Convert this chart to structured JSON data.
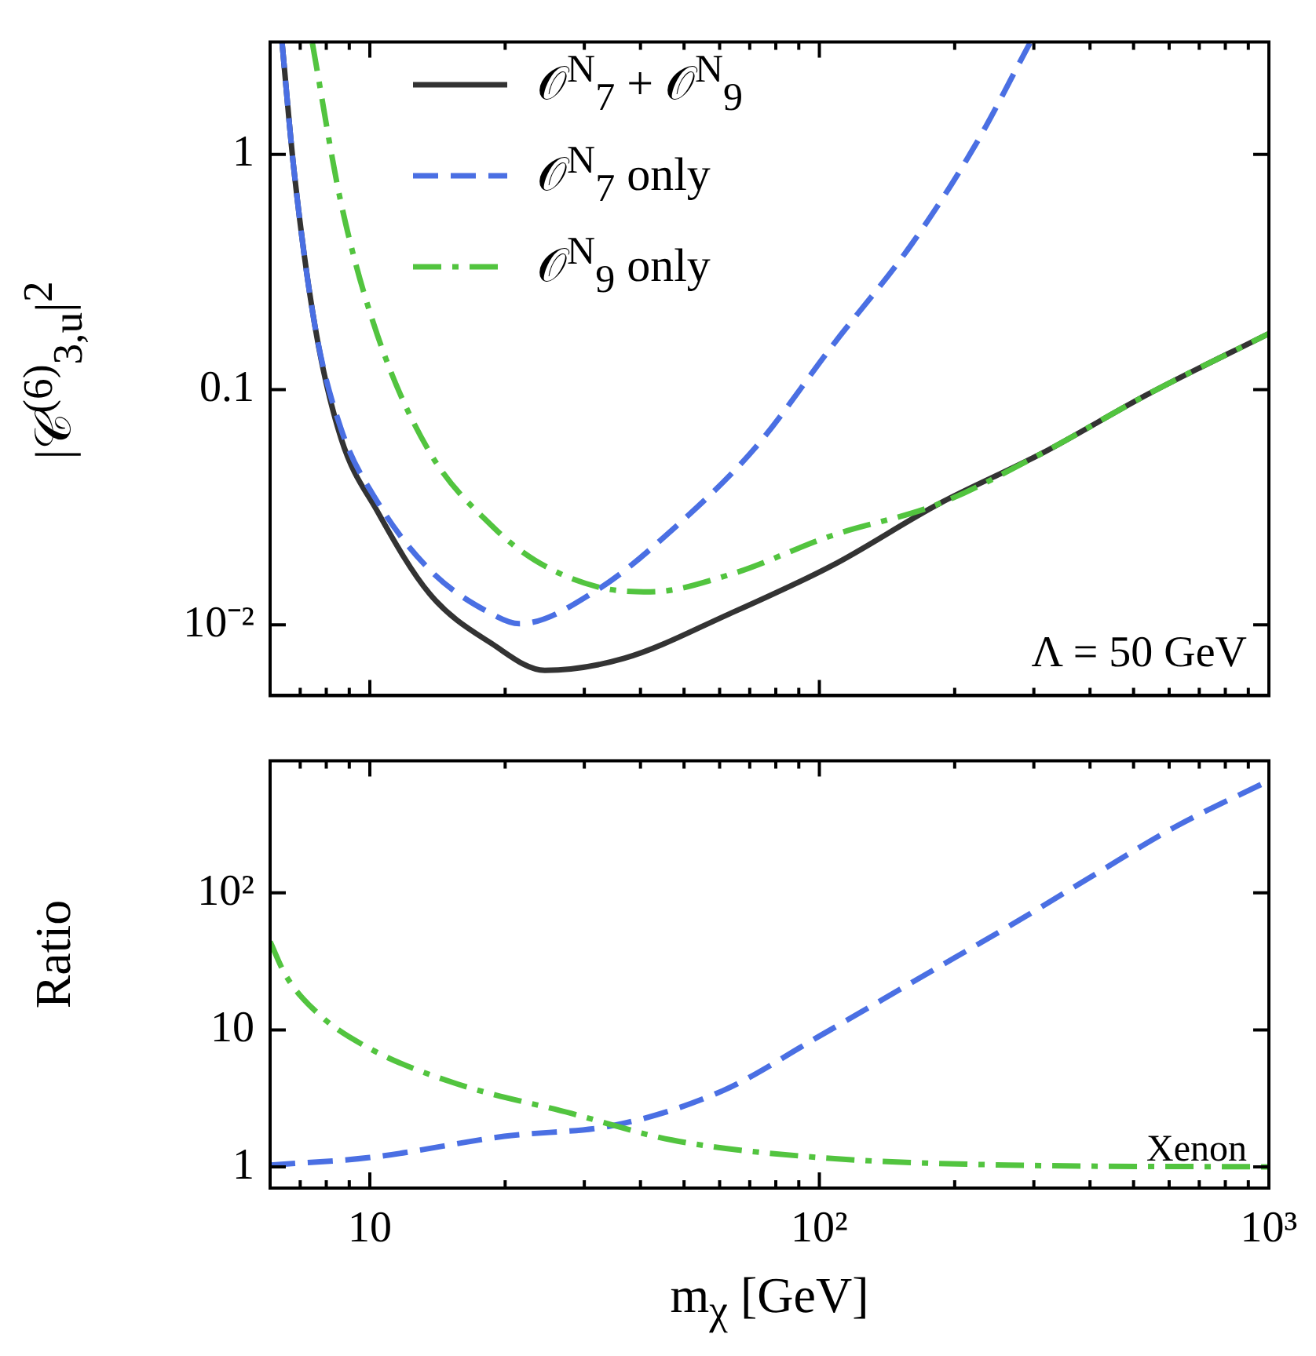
{
  "chart_data": [
    {
      "type": "line",
      "ylabel": "|𝒞$^{(6)}$$_{3,u}$|$^{2}$",
      "log": "xy",
      "grid": false,
      "legend": "top left",
      "tick_labels": "y",
      "marker": "none",
      "xlim": [
        6,
        1000
      ],
      "xticks": [
        {
          "value": 7,
          "label": null
        },
        {
          "value": 8,
          "label": null
        },
        {
          "value": 9,
          "label": null
        },
        {
          "value": 10,
          "label": null
        },
        {
          "value": 20,
          "label": null
        },
        {
          "value": 30,
          "label": null
        },
        {
          "value": 40,
          "label": null
        },
        {
          "value": 50,
          "label": null
        },
        {
          "value": 60,
          "label": null
        },
        {
          "value": 70,
          "label": null
        },
        {
          "value": 80,
          "label": null
        },
        {
          "value": 90,
          "label": null
        },
        {
          "value": 100,
          "label": null
        },
        {
          "value": 200,
          "label": null
        },
        {
          "value": 300,
          "label": null
        },
        {
          "value": 400,
          "label": null
        },
        {
          "value": 500,
          "label": null
        },
        {
          "value": 600,
          "label": null
        },
        {
          "value": 700,
          "label": null
        },
        {
          "value": 800,
          "label": null
        },
        {
          "value": 900,
          "label": null
        },
        {
          "value": 1000,
          "label": null
        }
      ],
      "ylim": [
        0.005,
        3
      ],
      "yticks": [
        {
          "value": 0.01,
          "label": "10⁻²"
        },
        0.1,
        1
      ],
      "annotations": [
        "Λ = 50 GeV"
      ],
      "series": [
        {
          "name": "𝒪$^{N}$$_{7}$ + 𝒪$^{N}$$_{9}$",
          "type": "line",
          "line_style": "solid",
          "color": "#333333",
          "x": [
            6.38,
            6.78,
            7.55,
            8.63,
            10.4,
            13.6,
            18.7,
            24.5,
            36.8,
            62.9,
            107,
            184,
            314,
            538,
            1000
          ],
          "values": [
            2.97,
            0.857,
            0.186,
            0.062,
            0.0303,
            0.0135,
            0.0083,
            0.0064,
            0.0072,
            0.0111,
            0.0179,
            0.0326,
            0.0538,
            0.0955,
            0.173
          ]
        },
        {
          "name": "𝒪$^{N}$$_{7}$ only",
          "type": "line",
          "line_style": "dashed",
          "color": "#4a6fe3",
          "x": [
            6.38,
            6.78,
            7.55,
            8.63,
            10.4,
            13.6,
            18.7,
            21.5,
            32.1,
            48.1,
            71.9,
            107,
            161,
            222,
            294
          ],
          "values": [
            2.97,
            0.857,
            0.186,
            0.068,
            0.0333,
            0.0171,
            0.0111,
            0.0101,
            0.0141,
            0.0263,
            0.0564,
            0.154,
            0.419,
            1.09,
            2.97
          ]
        },
        {
          "name": "𝒪$^{N}$$_{9}$ only",
          "type": "line",
          "line_style": "dashdot",
          "color": "#52c43f",
          "x": [
            7.45,
            8.63,
            10.4,
            13.6,
            18.7,
            23.3,
            32.1,
            42.1,
            62.9,
            107,
            184,
            314,
            538,
            1000
          ],
          "values": [
            2.97,
            0.62,
            0.17,
            0.054,
            0.0263,
            0.0188,
            0.0145,
            0.0138,
            0.0163,
            0.024,
            0.0326,
            0.0538,
            0.0955,
            0.173
          ]
        }
      ]
    },
    {
      "type": "line",
      "xlabel": "m$_{χ}$ [GeV]",
      "ylabel": "Ratio",
      "log": "xy",
      "grid": false,
      "marker": "none",
      "xlim": [
        6,
        1000
      ],
      "xticks": [
        {
          "value": 7,
          "label": null
        },
        {
          "value": 8,
          "label": null
        },
        {
          "value": 9,
          "label": null
        },
        10,
        {
          "value": 20,
          "label": null
        },
        {
          "value": 30,
          "label": null
        },
        {
          "value": 40,
          "label": null
        },
        {
          "value": 50,
          "label": null
        },
        {
          "value": 60,
          "label": null
        },
        {
          "value": 70,
          "label": null
        },
        {
          "value": 80,
          "label": null
        },
        {
          "value": 90,
          "label": null
        },
        {
          "value": 100,
          "label": "10²"
        },
        {
          "value": 200,
          "label": null
        },
        {
          "value": 300,
          "label": null
        },
        {
          "value": 400,
          "label": null
        },
        {
          "value": 500,
          "label": null
        },
        {
          "value": 600,
          "label": null
        },
        {
          "value": 700,
          "label": null
        },
        {
          "value": 800,
          "label": null
        },
        {
          "value": 900,
          "label": null
        },
        {
          "value": 1000,
          "label": "10³"
        }
      ],
      "ylim": [
        0.72,
        920
      ],
      "yticks": [
        1,
        10,
        {
          "value": 100,
          "label": "10²"
        }
      ],
      "annotations": [
        "Xenon"
      ],
      "series": [
        {
          "type": "line",
          "line_style": "dashed",
          "color": "#4a6fe3",
          "x": [
            6,
            10,
            19.9,
            35.5,
            61,
            100,
            171,
            264,
            405,
            622,
            1000
          ],
          "values": [
            1.03,
            1.17,
            1.67,
            2.03,
            3.6,
            9,
            25,
            57,
            133,
            306,
            660
          ]
        },
        {
          "type": "line",
          "line_style": "dashdot",
          "color": "#52c43f",
          "x": [
            6,
            6.5,
            7.7,
            10,
            15.4,
            28,
            47,
            100,
            264,
            1000
          ],
          "values": [
            44,
            25,
            13,
            7.3,
            4.1,
            2.46,
            1.57,
            1.17,
            1.03,
            1.0
          ]
        }
      ]
    }
  ]
}
